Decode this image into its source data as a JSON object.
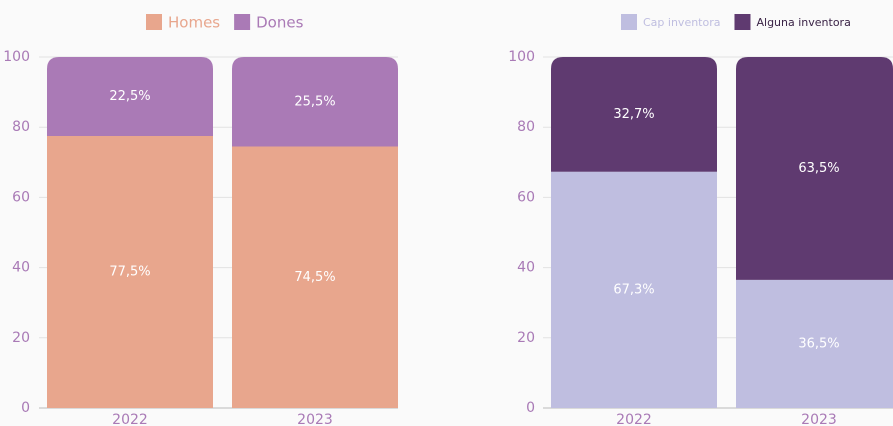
{
  "chart_data": [
    {
      "type": "stacked_bar",
      "categories": [
        "2022",
        "2023"
      ],
      "series": [
        {
          "name": "Homes",
          "color": "#e8a68d",
          "values": [
            77.5,
            74.5
          ],
          "value_labels": [
            "77,5%",
            "74,5%"
          ]
        },
        {
          "name": "Dones",
          "color": "#aa7ab6",
          "values": [
            22.5,
            25.5
          ],
          "value_labels": [
            "22,5%",
            "25,5%"
          ]
        }
      ],
      "ylim": [
        0,
        100
      ],
      "yticks": [
        0,
        20,
        40,
        60,
        80,
        100
      ],
      "grid": true,
      "legend": "top"
    },
    {
      "type": "stacked_bar",
      "categories": [
        "2022",
        "2023"
      ],
      "series": [
        {
          "name": "Cap inventora",
          "color": "#bfbee0",
          "values": [
            67.3,
            36.5
          ],
          "value_labels": [
            "67,3%",
            "36,5%"
          ]
        },
        {
          "name": "Alguna inventora",
          "color": "#5f3a70",
          "values": [
            32.7,
            63.5
          ],
          "value_labels": [
            "32,7%",
            "63,5%"
          ]
        }
      ],
      "ylim": [
        0,
        100
      ],
      "yticks": [
        0,
        20,
        40,
        60,
        80,
        100
      ],
      "grid": true,
      "legend": "top"
    }
  ]
}
